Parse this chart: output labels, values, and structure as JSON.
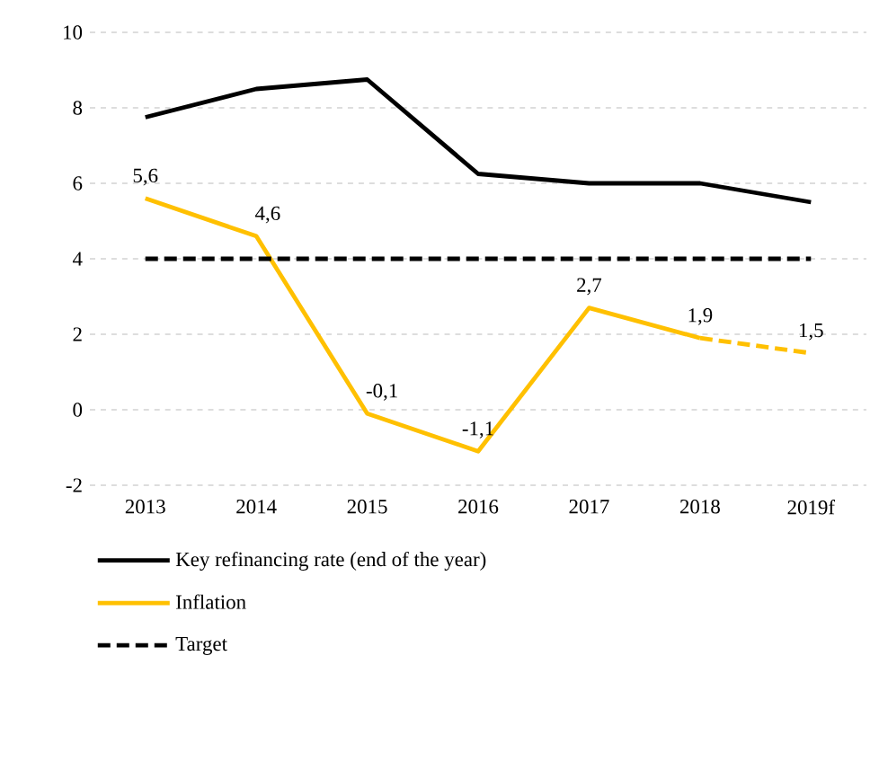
{
  "chart_data": {
    "type": "line",
    "categories": [
      "2013",
      "2014",
      "2015",
      "2016",
      "2017",
      "2018",
      "2019f"
    ],
    "ylim": [
      -2,
      10
    ],
    "yticks": [
      -2,
      0,
      2,
      4,
      6,
      8,
      10
    ],
    "grid": "y",
    "legend": "bottom",
    "marker": "none",
    "series": [
      {
        "name": "Key refinancing rate (end of the year)",
        "color": "#000000",
        "line_style": "solid",
        "values": [
          7.75,
          8.5,
          8.75,
          6.25,
          6.0,
          6.0,
          5.5
        ]
      },
      {
        "name": "Inflation",
        "color": "#ffc000",
        "line_style": "solid",
        "values": [
          5.6,
          4.6,
          -0.1,
          -1.1,
          2.7,
          1.9,
          null
        ],
        "value_labels": [
          "5,6",
          "4,6",
          "-0,1",
          "-1,1",
          "2,7",
          "1,9",
          null
        ]
      },
      {
        "color": "#ffc000",
        "line_style": "dashed",
        "values": [
          null,
          null,
          null,
          null,
          null,
          1.9,
          1.5
        ],
        "value_labels": [
          null,
          null,
          null,
          null,
          null,
          null,
          "1,5"
        ]
      },
      {
        "name": "Target",
        "color": "#000000",
        "line_style": "dashed",
        "values": [
          4,
          4,
          4,
          4,
          4,
          4,
          4
        ]
      }
    ]
  }
}
